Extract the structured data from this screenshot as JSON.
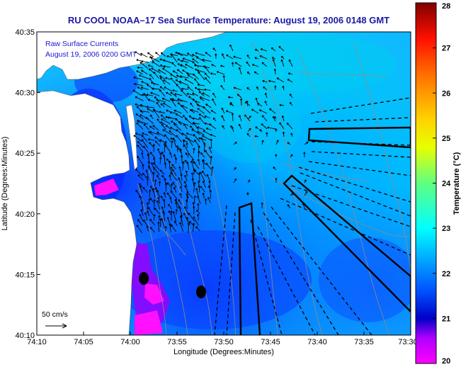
{
  "title": "RU COOL  NOAA–17  Sea Surface Temperature:  August 19, 2006 0148 GMT",
  "legend": {
    "line1": "Raw Surface Currents",
    "line2": "August 19, 2006 0200 GMT",
    "scale_label": "50 cm/s"
  },
  "colors": {
    "title": "#1a1aa8",
    "subtitle": "#1a1ad0",
    "land": "#ffffff",
    "vectors": "#000000",
    "contours": "#8c8c8c"
  },
  "chart_data": {
    "type": "heatmap",
    "xlabel": "Longitude (Degrees:Minutes)",
    "ylabel": "Latitude (Degrees:Minutes)",
    "x_ticks": [
      "74:10",
      "74:05",
      "74:00",
      "73:55",
      "73:50",
      "73:45",
      "73:40",
      "73:35",
      "73:30"
    ],
    "y_ticks": [
      "40:35",
      "40:30",
      "40:25",
      "40:20",
      "40:15",
      "40:10"
    ],
    "x_range_deg_west": [
      74.1667,
      73.5
    ],
    "y_range_deg_north": [
      40.1667,
      40.5833
    ],
    "colorbar": {
      "label": "Temperature (°C)",
      "min": 20,
      "max": 28,
      "ticks": [
        "28",
        "27",
        "26",
        "25",
        "24",
        "23",
        "22",
        "21",
        "20"
      ],
      "colormap": "jet"
    },
    "features": {
      "black_dots": 2,
      "outlined_regions": 3,
      "dashed_radial_lines": 20
    }
  }
}
